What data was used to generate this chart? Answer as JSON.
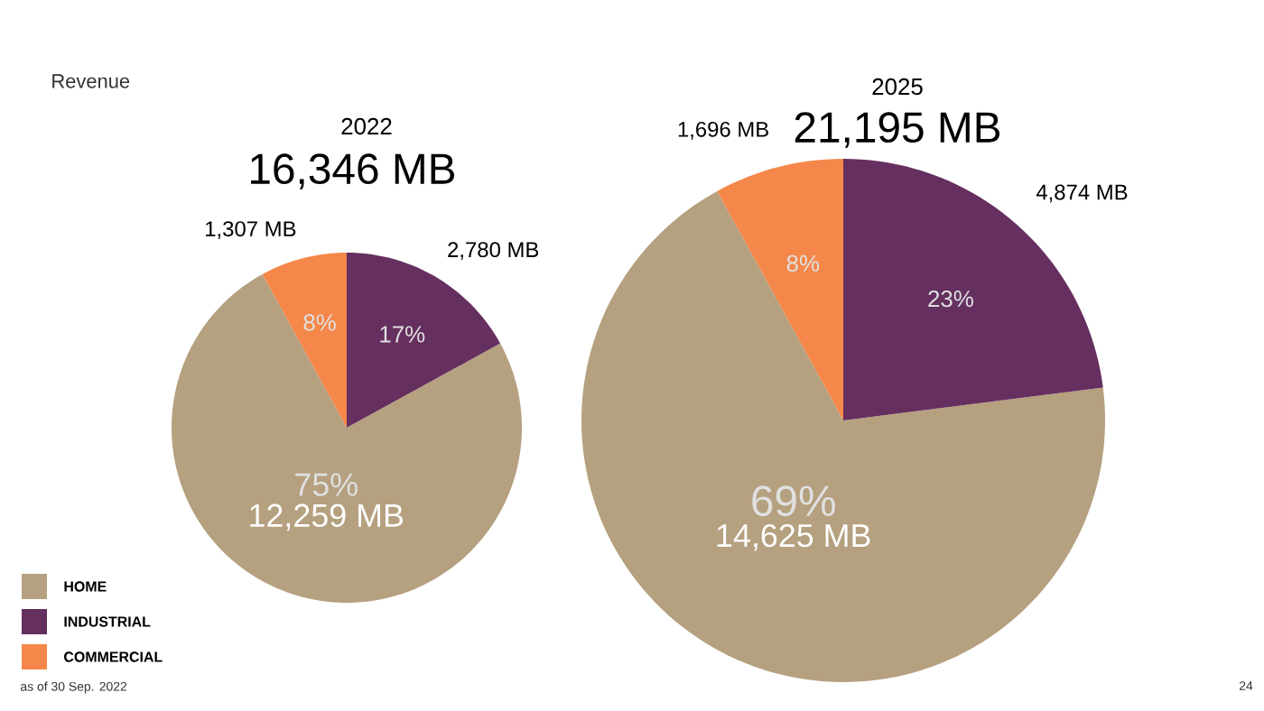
{
  "chart_data": [
    {
      "type": "pie",
      "title": "2022",
      "subtitle": "16,346 MB",
      "categories": [
        "HOME",
        "INDUSTRIAL",
        "COMMERCIAL"
      ],
      "values": [
        12259,
        2780,
        1307
      ],
      "colors": [
        "#b5a07f",
        "#652f5f",
        "#f5874a"
      ],
      "value_labels": [
        "12,259 MB",
        "2,780 MB",
        "1,307 MB"
      ],
      "legend": "bottom left",
      "annotations": [
        "75%",
        "17%",
        "8%",
        "Revenue",
        "as of 30 Sep. 2022"
      ]
    },
    {
      "type": "pie",
      "title": "2025",
      "subtitle": "21,195 MB",
      "categories": [
        null,
        null,
        null
      ],
      "values": [
        14625,
        4874,
        1696
      ],
      "colors": [
        "#b5a07f",
        "#652f5f",
        "#f5874a"
      ],
      "value_labels": [
        "14,625 MB",
        "4,874 MB",
        "1,696 MB"
      ],
      "annotations": [
        "69%",
        "23%",
        "8%",
        "24"
      ]
    }
  ]
}
